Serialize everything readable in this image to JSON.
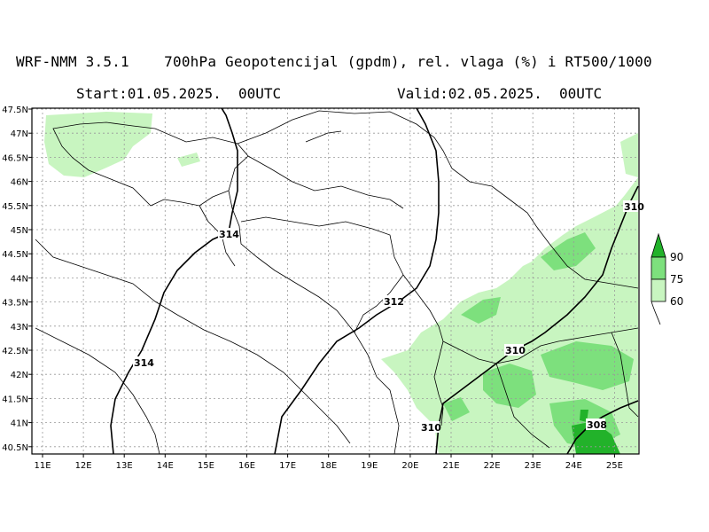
{
  "header": {
    "model": "WRF-NMM 3.5.1",
    "description": "700hPa Geopotencijal (gpdm), rel. vlaga (%) i RT500/1000",
    "start_label": "Start:01.05.2025.  00UTC",
    "valid_label": "Valid:02.05.2025.  00UTC"
  },
  "map": {
    "lat_ticks": [
      "47.5N",
      "47N",
      "46.5N",
      "46N",
      "45.5N",
      "45N",
      "44.5N",
      "44N",
      "43.5N",
      "43N",
      "42.5N",
      "42N",
      "41.5N",
      "41N",
      "40.5N"
    ],
    "lon_ticks": [
      "11E",
      "12E",
      "13E",
      "14E",
      "15E",
      "16E",
      "17E",
      "18E",
      "19E",
      "20E",
      "21E",
      "22E",
      "23E",
      "24E",
      "25E"
    ],
    "contour_labels": [
      "314",
      "314",
      "312",
      "310",
      "310",
      "310",
      "308"
    ]
  },
  "legend": {
    "labels": [
      "90",
      "75",
      "60"
    ],
    "colors": [
      "#22b22a",
      "#7de07d",
      "#c8f5c0"
    ]
  },
  "colors": {
    "humid_light": "#c8f5c0",
    "humid_mid": "#7de07d",
    "humid_dark": "#22b22a"
  }
}
